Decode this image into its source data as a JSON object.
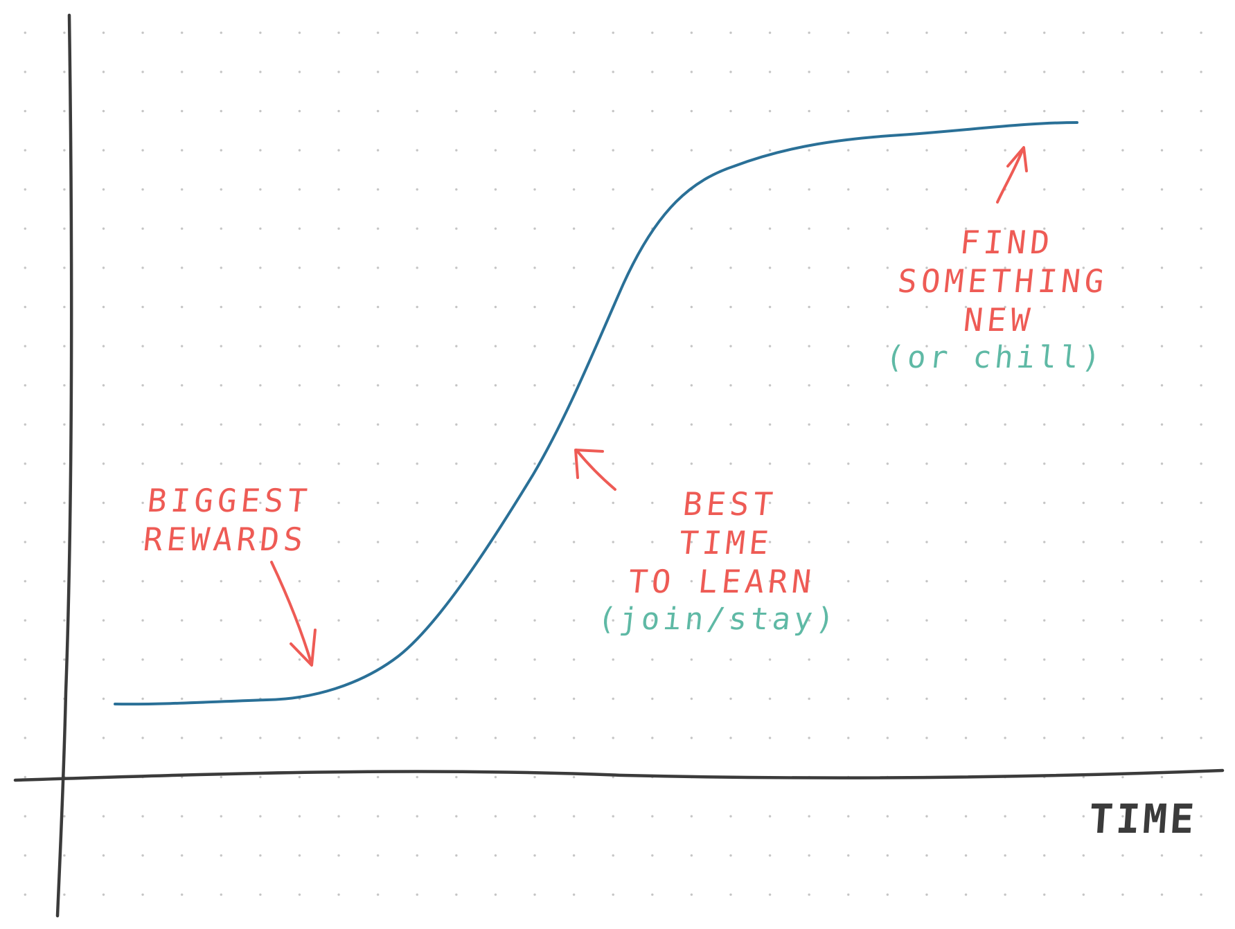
{
  "axes": {
    "x_label": "TIME",
    "y_label": ""
  },
  "annotations": {
    "biggest_rewards": {
      "lines": [
        "BIGGEST",
        "REWARDS"
      ]
    },
    "best_time": {
      "lines": [
        "BEST",
        "TIME",
        "TO LEARN"
      ],
      "note": "(join/stay)"
    },
    "find_new": {
      "lines": [
        "FIND",
        "SOMETHING",
        "NEW"
      ],
      "note": "(or chill)"
    }
  },
  "colors": {
    "curve": "#2a7097",
    "axes": "#3b3b3b",
    "annotation": "#ee5b55",
    "note": "#5fb9a5",
    "grid_dots": "#c4c4c4"
  }
}
